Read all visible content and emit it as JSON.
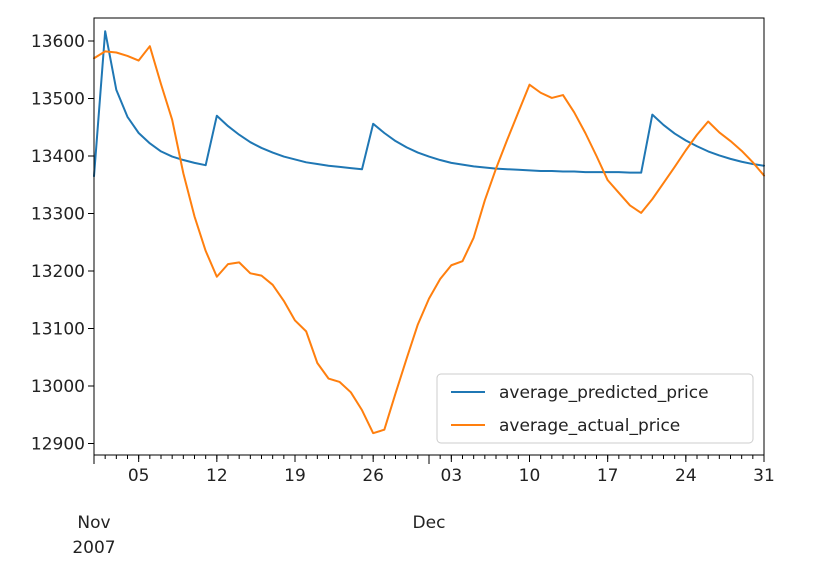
{
  "chart_data": {
    "type": "line",
    "title": "",
    "xlabel": "",
    "ylabel": "",
    "x_start": "2007-11-01",
    "x_end": "2007-12-31",
    "xlim": [
      "2007-11-01",
      "2007-12-31"
    ],
    "ylim": [
      12880,
      13640
    ],
    "y_ticks": [
      12900,
      13000,
      13100,
      13200,
      13300,
      13400,
      13500,
      13600
    ],
    "x_major_ticks": [
      {
        "date": "2007-11-05",
        "label": "05"
      },
      {
        "date": "2007-11-12",
        "label": "12"
      },
      {
        "date": "2007-11-19",
        "label": "19"
      },
      {
        "date": "2007-11-26",
        "label": "26"
      },
      {
        "date": "2007-12-03",
        "label": "03"
      },
      {
        "date": "2007-12-10",
        "label": "10"
      },
      {
        "date": "2007-12-17",
        "label": "17"
      },
      {
        "date": "2007-12-24",
        "label": "24"
      },
      {
        "date": "2007-12-31",
        "label": "31"
      }
    ],
    "x_month_labels": [
      {
        "date": "2007-11-01",
        "label": "Nov",
        "sublabel": "2007"
      },
      {
        "date": "2007-12-01",
        "label": "Dec",
        "sublabel": ""
      }
    ],
    "legend_position": "lower right",
    "grid": false,
    "series": [
      {
        "name": "average_predicted_price",
        "color": "#1f77b4",
        "points": [
          [
            "2007-11-01",
            13365
          ],
          [
            "2007-11-02",
            13617
          ],
          [
            "2007-11-03",
            13515
          ],
          [
            "2007-11-04",
            13468
          ],
          [
            "2007-11-05",
            13440
          ],
          [
            "2007-11-06",
            13422
          ],
          [
            "2007-11-07",
            13408
          ],
          [
            "2007-11-08",
            13399
          ],
          [
            "2007-11-09",
            13393
          ],
          [
            "2007-11-10",
            13388
          ],
          [
            "2007-11-11",
            13384
          ],
          [
            "2007-11-12",
            13470
          ],
          [
            "2007-11-13",
            13452
          ],
          [
            "2007-11-14",
            13437
          ],
          [
            "2007-11-15",
            13424
          ],
          [
            "2007-11-16",
            13414
          ],
          [
            "2007-11-17",
            13406
          ],
          [
            "2007-11-18",
            13399
          ],
          [
            "2007-11-19",
            13394
          ],
          [
            "2007-11-20",
            13389
          ],
          [
            "2007-11-21",
            13386
          ],
          [
            "2007-11-22",
            13383
          ],
          [
            "2007-11-23",
            13381
          ],
          [
            "2007-11-24",
            13379
          ],
          [
            "2007-11-25",
            13377
          ],
          [
            "2007-11-26",
            13456
          ],
          [
            "2007-11-27",
            13440
          ],
          [
            "2007-11-28",
            13426
          ],
          [
            "2007-11-29",
            13415
          ],
          [
            "2007-11-30",
            13406
          ],
          [
            "2007-12-01",
            13399
          ],
          [
            "2007-12-02",
            13393
          ],
          [
            "2007-12-03",
            13388
          ],
          [
            "2007-12-04",
            13385
          ],
          [
            "2007-12-05",
            13382
          ],
          [
            "2007-12-06",
            13380
          ],
          [
            "2007-12-07",
            13378
          ],
          [
            "2007-12-08",
            13377
          ],
          [
            "2007-12-09",
            13376
          ],
          [
            "2007-12-10",
            13375
          ],
          [
            "2007-12-11",
            13374
          ],
          [
            "2007-12-12",
            13374
          ],
          [
            "2007-12-13",
            13373
          ],
          [
            "2007-12-14",
            13373
          ],
          [
            "2007-12-15",
            13372
          ],
          [
            "2007-12-16",
            13372
          ],
          [
            "2007-12-17",
            13372
          ],
          [
            "2007-12-18",
            13372
          ],
          [
            "2007-12-19",
            13371
          ],
          [
            "2007-12-20",
            13371
          ],
          [
            "2007-12-21",
            13472
          ],
          [
            "2007-12-22",
            13454
          ],
          [
            "2007-12-23",
            13439
          ],
          [
            "2007-12-24",
            13427
          ],
          [
            "2007-12-25",
            13417
          ],
          [
            "2007-12-26",
            13408
          ],
          [
            "2007-12-27",
            13401
          ],
          [
            "2007-12-28",
            13395
          ],
          [
            "2007-12-29",
            13390
          ],
          [
            "2007-12-30",
            13386
          ],
          [
            "2007-12-31",
            13383
          ]
        ]
      },
      {
        "name": "average_actual_price",
        "color": "#ff7f0e",
        "points": [
          [
            "2007-11-01",
            13570
          ],
          [
            "2007-11-02",
            13582
          ],
          [
            "2007-11-03",
            13580
          ],
          [
            "2007-11-04",
            13574
          ],
          [
            "2007-11-05",
            13566
          ],
          [
            "2007-11-06",
            13591
          ],
          [
            "2007-11-07",
            13525
          ],
          [
            "2007-11-08",
            13463
          ],
          [
            "2007-11-09",
            13370
          ],
          [
            "2007-11-10",
            13295
          ],
          [
            "2007-11-11",
            13235
          ],
          [
            "2007-11-12",
            13190
          ],
          [
            "2007-11-13",
            13212
          ],
          [
            "2007-11-14",
            13215
          ],
          [
            "2007-11-15",
            13196
          ],
          [
            "2007-11-16",
            13192
          ],
          [
            "2007-11-17",
            13176
          ],
          [
            "2007-11-18",
            13148
          ],
          [
            "2007-11-19",
            13114
          ],
          [
            "2007-11-20",
            13095
          ],
          [
            "2007-11-21",
            13040
          ],
          [
            "2007-11-22",
            13013
          ],
          [
            "2007-11-23",
            13007
          ],
          [
            "2007-11-24",
            12989
          ],
          [
            "2007-11-25",
            12958
          ],
          [
            "2007-11-26",
            12918
          ],
          [
            "2007-11-27",
            12924
          ],
          [
            "2007-11-28",
            12987
          ],
          [
            "2007-11-29",
            13048
          ],
          [
            "2007-11-30",
            13107
          ],
          [
            "2007-12-01",
            13152
          ],
          [
            "2007-12-02",
            13186
          ],
          [
            "2007-12-03",
            13210
          ],
          [
            "2007-12-04",
            13217
          ],
          [
            "2007-12-05",
            13258
          ],
          [
            "2007-12-06",
            13323
          ],
          [
            "2007-12-07",
            13378
          ],
          [
            "2007-12-08",
            13428
          ],
          [
            "2007-12-09",
            13476
          ],
          [
            "2007-12-10",
            13524
          ],
          [
            "2007-12-11",
            13510
          ],
          [
            "2007-12-12",
            13501
          ],
          [
            "2007-12-13",
            13506
          ],
          [
            "2007-12-14",
            13476
          ],
          [
            "2007-12-15",
            13440
          ],
          [
            "2007-12-16",
            13400
          ],
          [
            "2007-12-17",
            13358
          ],
          [
            "2007-12-18",
            13336
          ],
          [
            "2007-12-19",
            13314
          ],
          [
            "2007-12-20",
            13301
          ],
          [
            "2007-12-21",
            13325
          ],
          [
            "2007-12-22",
            13353
          ],
          [
            "2007-12-23",
            13381
          ],
          [
            "2007-12-24",
            13410
          ],
          [
            "2007-12-25",
            13437
          ],
          [
            "2007-12-26",
            13460
          ],
          [
            "2007-12-27",
            13441
          ],
          [
            "2007-12-28",
            13426
          ],
          [
            "2007-12-29",
            13409
          ],
          [
            "2007-12-30",
            13389
          ],
          [
            "2007-12-31",
            13366
          ]
        ]
      }
    ]
  }
}
